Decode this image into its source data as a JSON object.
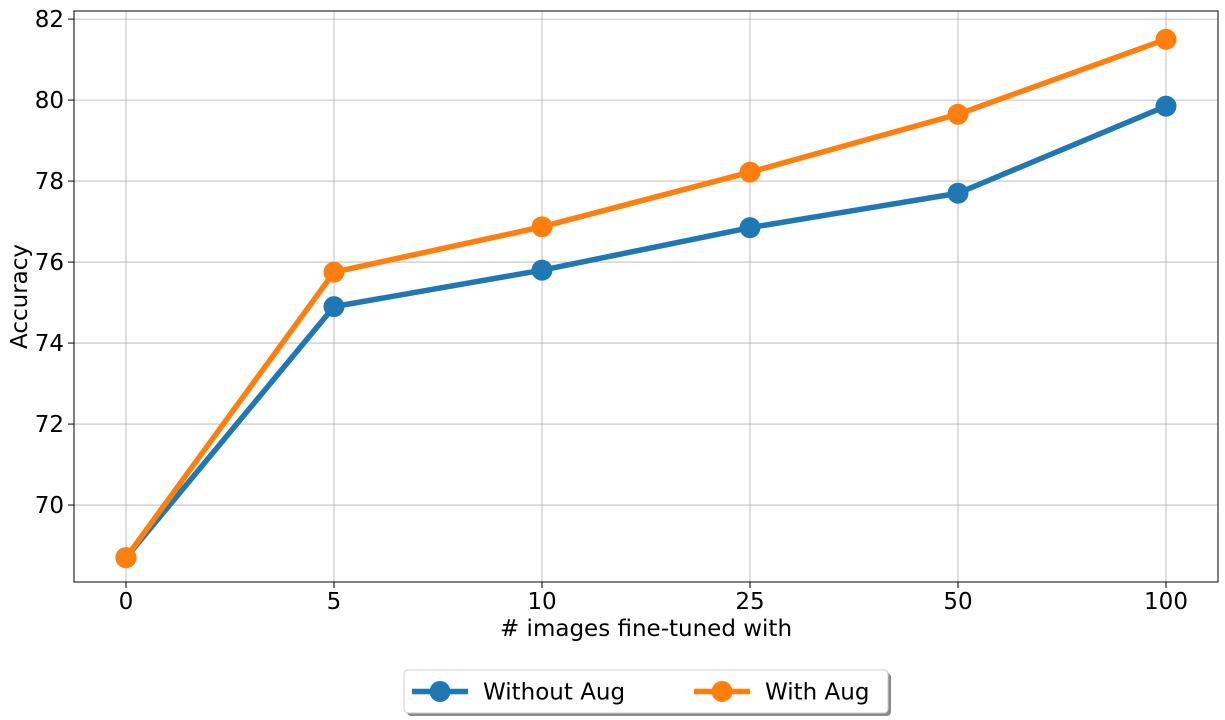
{
  "chart_data": {
    "type": "line",
    "title": "",
    "xlabel": "# images fine-tuned with",
    "ylabel": "Accuracy",
    "categories": [
      "0",
      "5",
      "10",
      "25",
      "50",
      "100"
    ],
    "ylim": [
      68.1,
      82.2
    ],
    "yticks": [
      70,
      72,
      74,
      76,
      78,
      80,
      82
    ],
    "grid": true,
    "legend_position": "bottom-center",
    "series": [
      {
        "name": "Without Aug",
        "color": "#1f77b4",
        "values": [
          68.7,
          74.9,
          75.8,
          76.85,
          77.7,
          79.85
        ]
      },
      {
        "name": "With Aug",
        "color": "#ff7f0e",
        "values": [
          68.7,
          75.75,
          76.87,
          78.22,
          79.65,
          81.5
        ]
      }
    ]
  }
}
